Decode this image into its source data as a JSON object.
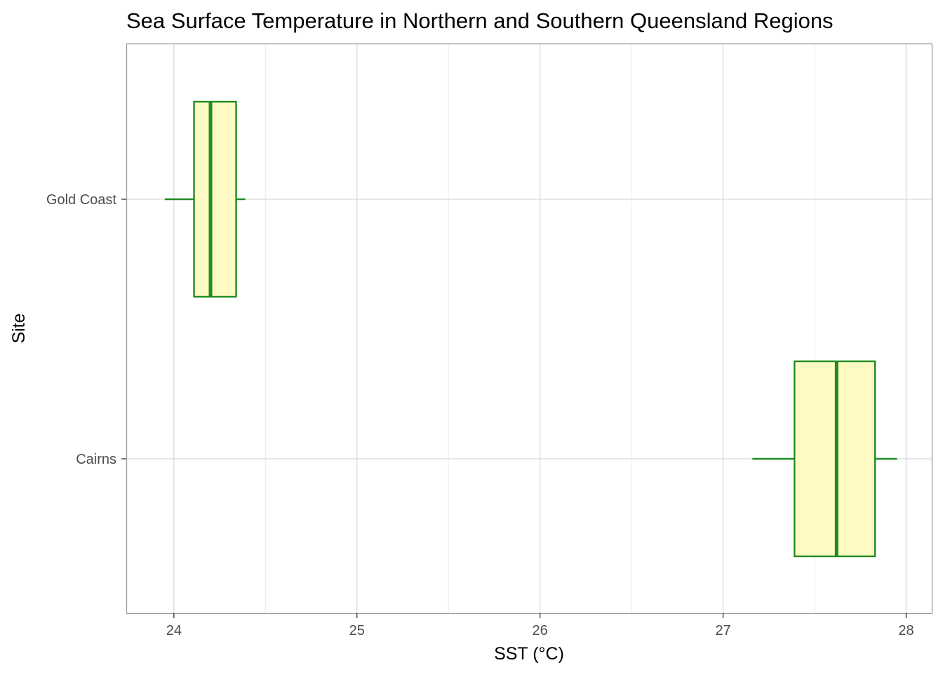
{
  "chart_data": {
    "type": "boxplot",
    "orientation": "horizontal",
    "title": "Sea Surface Temperature in Northern and Southern Queensland Regions",
    "xlabel": "SST (°C)",
    "ylabel": "Site",
    "xlim": [
      23.74,
      28.14
    ],
    "x_ticks": [
      24,
      25,
      26,
      27,
      28
    ],
    "x_minor_ticks": [
      24.5,
      25.5,
      26.5,
      27.5
    ],
    "categories": [
      "Gold Coast",
      "Cairns"
    ],
    "boxes": [
      {
        "name": "Gold Coast",
        "whisker_low": 23.95,
        "q1": 24.11,
        "median": 24.2,
        "q3": 24.34,
        "whisker_high": 24.39
      },
      {
        "name": "Cairns",
        "whisker_low": 27.16,
        "q1": 27.39,
        "median": 27.62,
        "q3": 27.83,
        "whisker_high": 27.95
      }
    ],
    "grid": true,
    "colors": {
      "box_fill": "#fffac3",
      "box_stroke": "#228b22",
      "grid": "#d9d9d9",
      "panel_border": "#9e9e9e",
      "tick_text": "#4d4d4d",
      "text": "#000000"
    }
  }
}
